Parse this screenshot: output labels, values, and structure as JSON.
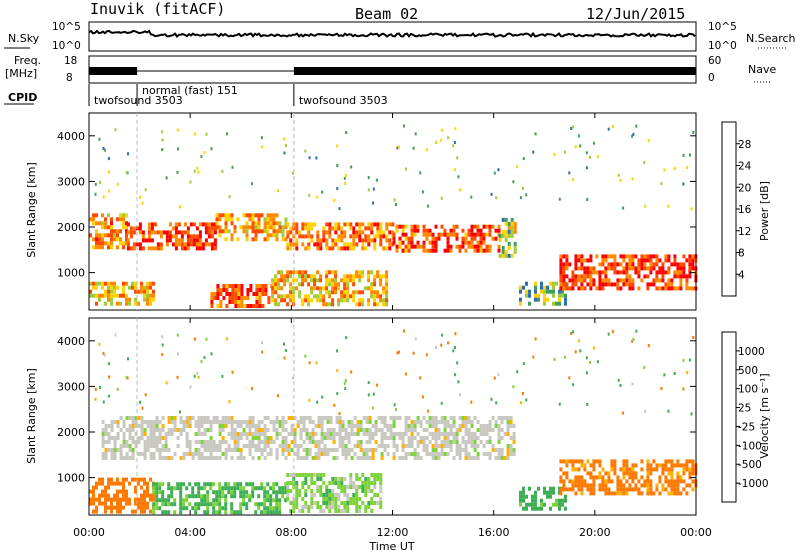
{
  "header": {
    "station": "Inuvik (fitACF)",
    "beam": "Beam 02",
    "date": "12/Jun/2015"
  },
  "panels": {
    "sky": {
      "left_label": "N.Sky",
      "left_ticks": [
        "10^5",
        "10^0"
      ],
      "right_label": "N.Search",
      "right_ticks": [
        "10^5",
        "10^0"
      ]
    },
    "freq": {
      "left_label_1": "Freq.",
      "left_label_2": "[MHz]",
      "left_ticks": [
        "18",
        "8"
      ],
      "right_label": "Nave",
      "right_ticks": [
        "60",
        "0"
      ]
    },
    "cpid": {
      "label": "CPID",
      "segments": [
        {
          "label": "twofsound 3503",
          "start_hour": 0
        },
        {
          "label": "normal (fast) 151",
          "start_hour": 1.9
        },
        {
          "label": "twofsound 3503",
          "start_hour": 8.1
        }
      ]
    }
  },
  "power_colorbar": {
    "label": "Power [dB]",
    "ticks": [
      "28",
      "24",
      "20",
      "16",
      "12",
      "8",
      "4"
    ],
    "colors": [
      "#ff0000",
      "#ff4a00",
      "#ff8a00",
      "#ffd200",
      "#9fcc3a",
      "#3e9f55",
      "#2c6fb0",
      "#1f1fff"
    ]
  },
  "velocity_colorbar": {
    "label": "Velocity [m s⁻¹]",
    "ticks": [
      "1000",
      "500",
      "100",
      "25",
      "-25",
      "-100",
      "-500",
      "-1000"
    ],
    "colors": [
      "#1f4fb0",
      "#2c8a9a",
      "#3eae55",
      "#7fd33a",
      "#c8c8c0",
      "#ffb000",
      "#ff7800",
      "#ff3c00",
      "#ff0000"
    ]
  },
  "chart_data": {
    "type": "heatmap",
    "xlabel": "Time UT",
    "ylabel": "Slant Range [km]",
    "x_ticks": [
      "00:00",
      "04:00",
      "08:00",
      "12:00",
      "16:00",
      "20:00",
      "00:00"
    ],
    "y_ticks": [
      "1000",
      "2000",
      "3000",
      "4000"
    ],
    "xlim_hours": [
      0,
      24
    ],
    "ylim_km": [
      180,
      4500
    ],
    "dashed_markers_hours": [
      1.9,
      8.1
    ],
    "power_echo_regions": [
      {
        "t0": 0.0,
        "t1": 1.5,
        "r0": 1550,
        "r1": 2300,
        "power_db": 22
      },
      {
        "t0": 1.5,
        "t1": 5.0,
        "r0": 1500,
        "r1": 2100,
        "power_db": 27
      },
      {
        "t0": 5.0,
        "t1": 7.8,
        "r0": 1700,
        "r1": 2300,
        "power_db": 21
      },
      {
        "t0": 7.8,
        "t1": 12.0,
        "r0": 1500,
        "r1": 2100,
        "power_db": 23
      },
      {
        "t0": 12.0,
        "t1": 16.2,
        "r0": 1450,
        "r1": 2050,
        "power_db": 26
      },
      {
        "t0": 16.2,
        "t1": 16.9,
        "r0": 1400,
        "r1": 2200,
        "power_db": 14
      },
      {
        "t0": 0.0,
        "t1": 2.5,
        "r0": 300,
        "r1": 800,
        "power_db": 20
      },
      {
        "t0": 4.8,
        "t1": 7.2,
        "r0": 250,
        "r1": 750,
        "power_db": 25
      },
      {
        "t0": 7.2,
        "t1": 11.8,
        "r0": 280,
        "r1": 1050,
        "power_db": 19
      },
      {
        "t0": 17.0,
        "t1": 18.8,
        "r0": 280,
        "r1": 800,
        "power_db": 11
      },
      {
        "t0": 18.6,
        "t1": 24.0,
        "r0": 650,
        "r1": 1400,
        "power_db": 27
      }
    ],
    "velocity_echo_regions": [
      {
        "t0": 0.5,
        "t1": 16.8,
        "r0": 1450,
        "r1": 2350,
        "velocity": 0
      },
      {
        "t0": 0.0,
        "t1": 2.5,
        "r0": 280,
        "r1": 1000,
        "velocity": -300
      },
      {
        "t0": 2.5,
        "t1": 7.8,
        "r0": 280,
        "r1": 900,
        "velocity": 150
      },
      {
        "t0": 7.8,
        "t1": 11.5,
        "r0": 280,
        "r1": 1100,
        "velocity": 60
      },
      {
        "t0": 17.0,
        "t1": 18.8,
        "r0": 280,
        "r1": 800,
        "velocity": 200
      },
      {
        "t0": 18.6,
        "t1": 24.0,
        "r0": 650,
        "r1": 1400,
        "velocity": -200
      }
    ]
  }
}
